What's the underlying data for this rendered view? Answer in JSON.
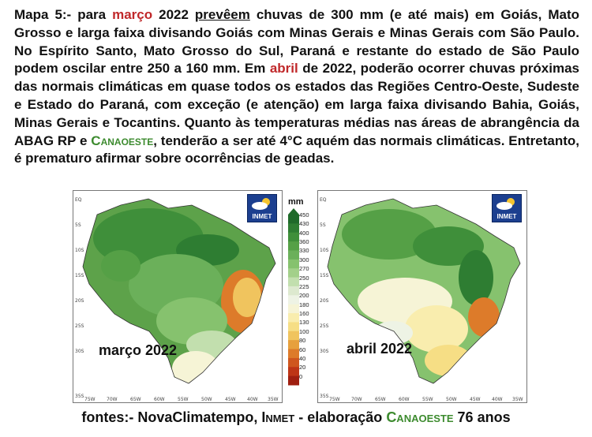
{
  "paragraph": {
    "p1": "Mapa 5:- para ",
    "marco": "março",
    "p2": " 2022 ",
    "preveem": "prevêem",
    "p3": " chuvas de 300 mm (e até mais) em Goiás, Mato Grosso e larga faixa divisando Goiás com Minas Gerais e Minas Gerais com São Paulo. No Espírito Santo, Mato Grosso do Sul, Paraná e restante do estado de São Paulo podem oscilar entre 250 a 160 mm. Em ",
    "abril": "abril",
    "p4": " de 2022, poderão ocorrer chuvas próximas das normais climáticas em quase todos os estados das Regiões Centro-Oeste, Sudeste e Estado do Paraná, com exceção (e atenção) em larga faixa divisando Bahia, Goiás, Minas Gerais e Tocantins. Quanto às temperaturas médias nas áreas de abrangência da ABAG RP e ",
    "canaoeste": "Canaoeste",
    "p5": ", tenderão a ser até 4°C aquém das normais climáticas. Entretanto, é prematuro afirmar sobre ocorrências de geadas."
  },
  "maps": [
    {
      "label": "março 2022",
      "badge": "INMET"
    },
    {
      "label": "abril 2022",
      "badge": "INMET"
    }
  ],
  "axis": {
    "lat": [
      "EQ",
      "5S",
      "10S",
      "15S",
      "20S",
      "25S",
      "30S",
      "35S"
    ],
    "lon": [
      "75W",
      "70W",
      "65W",
      "60W",
      "55W",
      "50W",
      "45W",
      "40W",
      "35W"
    ]
  },
  "legend": {
    "unit": "mm",
    "ticks": [
      "450",
      "430",
      "400",
      "360",
      "330",
      "300",
      "270",
      "250",
      "225",
      "200",
      "180",
      "160",
      "130",
      "100",
      "80",
      "60",
      "40",
      "20",
      "0"
    ],
    "colors": [
      "#1f6a2a",
      "#2e7d32",
      "#3f8f3a",
      "#55a046",
      "#6bb05a",
      "#86c26e",
      "#a3d08a",
      "#c2dfae",
      "#dde9cf",
      "#eef3e5",
      "#f6f4d6",
      "#f9edae",
      "#f6de85",
      "#f0c45e",
      "#e7a03d",
      "#dd7b2a",
      "#cf561e",
      "#bd3516",
      "#9f1f10"
    ]
  },
  "footer": {
    "f1": "fontes:- NovaClimatempo, ",
    "inmet": "Inmet",
    "f2": " - elaboração ",
    "canaoeste": "Canaoeste",
    "f3": " 76 anos"
  }
}
